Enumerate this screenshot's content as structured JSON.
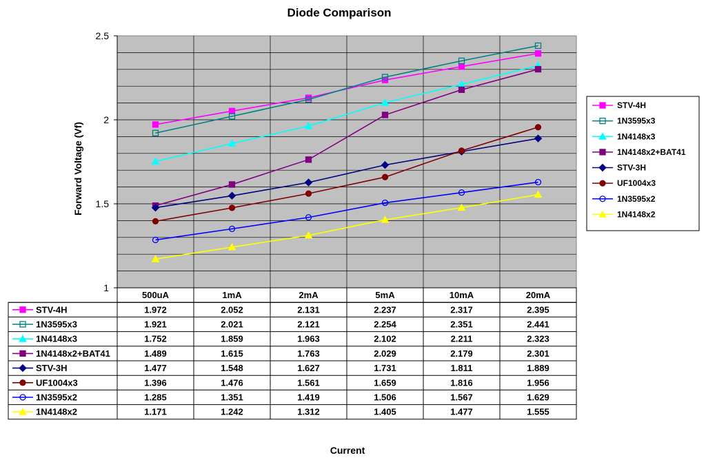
{
  "chart_data": {
    "type": "line",
    "title": "Diode Comparison",
    "xlabel": "Current",
    "ylabel": "Forward Voltage (Vf)",
    "ylim": [
      1,
      2.5
    ],
    "yticks": [
      "1",
      "1.5",
      "2",
      "2.5"
    ],
    "grid": true,
    "legend_position": "right",
    "has_data_table": true,
    "categories": [
      "500uA",
      "1mA",
      "2mA",
      "5mA",
      "10mA",
      "20mA"
    ],
    "series": [
      {
        "name": "STV-4H",
        "color": "#ff00ff",
        "marker": "square-filled",
        "values": [
          1.972,
          2.052,
          2.131,
          2.237,
          2.317,
          2.395
        ],
        "labels": [
          "1.972",
          "2.052",
          "2.131",
          "2.237",
          "2.317",
          "2.395"
        ]
      },
      {
        "name": "1N3595x3",
        "color": "#008080",
        "marker": "square-open",
        "values": [
          1.921,
          2.021,
          2.121,
          2.254,
          2.351,
          2.441
        ],
        "labels": [
          "1.921",
          "2.021",
          "2.121",
          "2.254",
          "2.351",
          "2.441"
        ]
      },
      {
        "name": "1N4148x3",
        "color": "#00ffff",
        "marker": "triangle-filled",
        "values": [
          1.752,
          1.859,
          1.963,
          2.102,
          2.211,
          2.323
        ],
        "labels": [
          "1.752",
          "1.859",
          "1.963",
          "2.102",
          "2.211",
          "2.323"
        ]
      },
      {
        "name": "1N4148x2+BAT41",
        "color": "#800080",
        "marker": "square-filled",
        "values": [
          1.489,
          1.615,
          1.763,
          2.029,
          2.179,
          2.301
        ],
        "labels": [
          "1.489",
          "1.615",
          "1.763",
          "2.029",
          "2.179",
          "2.301"
        ]
      },
      {
        "name": "STV-3H",
        "color": "#000080",
        "marker": "diamond-filled",
        "values": [
          1.477,
          1.548,
          1.627,
          1.731,
          1.811,
          1.889
        ],
        "labels": [
          "1.477",
          "1.548",
          "1.627",
          "1.731",
          "1.811",
          "1.889"
        ]
      },
      {
        "name": "UF1004x3",
        "color": "#800000",
        "marker": "circle-filled",
        "values": [
          1.396,
          1.476,
          1.561,
          1.659,
          1.816,
          1.956
        ],
        "labels": [
          "1.396",
          "1.476",
          "1.561",
          "1.659",
          "1.816",
          "1.956"
        ]
      },
      {
        "name": "1N3595x2",
        "color": "#0000ff",
        "marker": "circle-open",
        "values": [
          1.285,
          1.351,
          1.419,
          1.506,
          1.567,
          1.629
        ],
        "labels": [
          "1.285",
          "1.351",
          "1.419",
          "1.506",
          "1.567",
          "1.629"
        ]
      },
      {
        "name": "1N4148x2",
        "color": "#ffff00",
        "marker": "triangle-filled",
        "values": [
          1.171,
          1.242,
          1.312,
          1.405,
          1.477,
          1.555
        ],
        "labels": [
          "1.171",
          "1.242",
          "1.312",
          "1.405",
          "1.477",
          "1.555"
        ]
      }
    ]
  },
  "colors": {
    "plot_background": "#c0c0c0",
    "gridline": "#000000",
    "page_background": "#ffffff"
  }
}
